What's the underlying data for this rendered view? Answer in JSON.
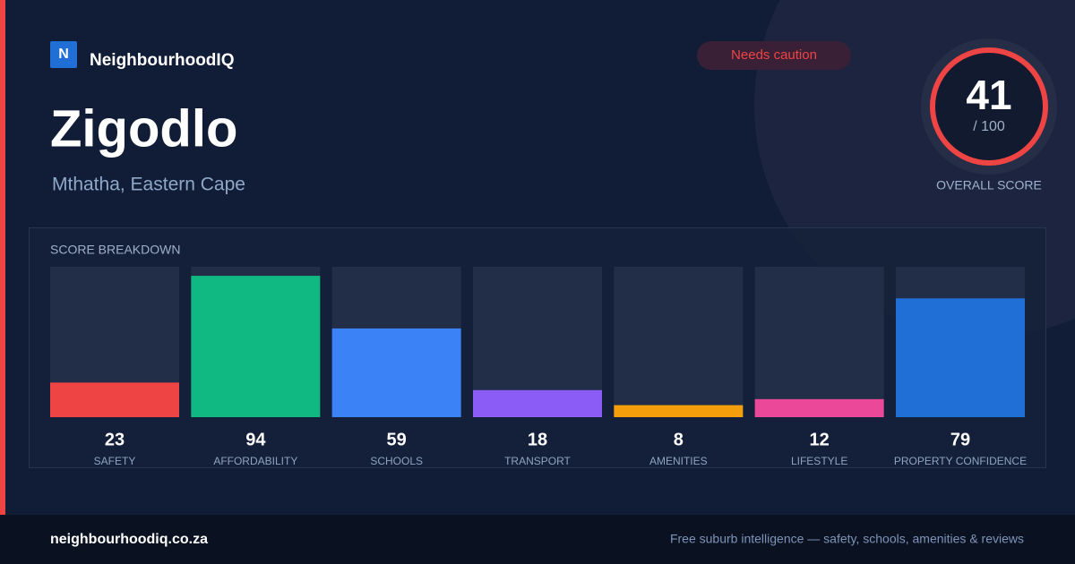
{
  "brand": {
    "logo": "N",
    "name": "NeighbourhoodIQ"
  },
  "suburb": "Zigodlo",
  "location": "Mthatha, Eastern Cape",
  "badge": "Needs caution",
  "score": {
    "value": 41,
    "max_label": "/ 100",
    "label": "OVERALL SCORE"
  },
  "chart_data": {
    "type": "bar",
    "title": "SCORE BREAKDOWN",
    "categories": [
      "SAFETY",
      "AFFORDABILITY",
      "SCHOOLS",
      "TRANSPORT",
      "AMENITIES",
      "LIFESTYLE",
      "PROPERTY CONFIDENCE"
    ],
    "values": [
      23,
      94,
      59,
      18,
      8,
      12,
      79
    ],
    "colors": [
      "#ef4444",
      "#10b981",
      "#3b82f6",
      "#8b5cf6",
      "#f59e0b",
      "#ec4899",
      "#1f6fd6"
    ],
    "ylim": [
      0,
      100
    ]
  },
  "footer": {
    "url": "neighbourhoodiq.co.za",
    "tagline": "Free suburb intelligence — safety, schools, amenities & reviews"
  }
}
